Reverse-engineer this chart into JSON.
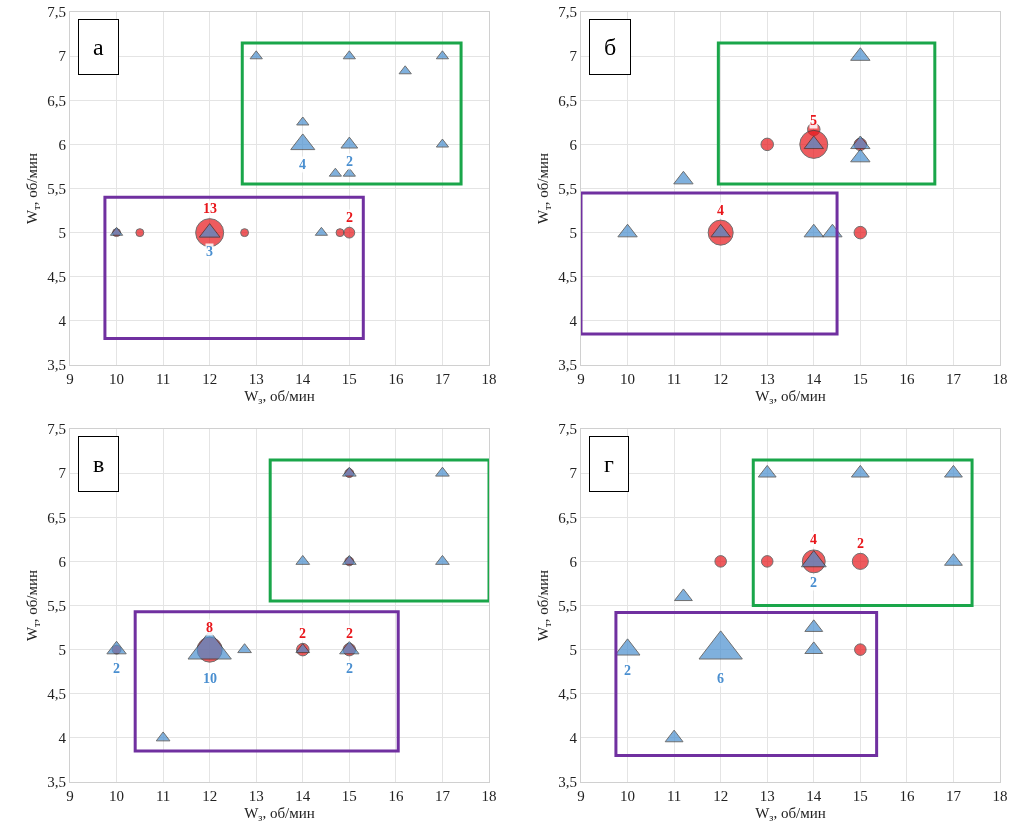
{
  "chart_data": [
    {
      "type": "bubble",
      "title": "а",
      "xlabel": "W$_{з}$, об/мин",
      "ylabel": "W$_{т}$, об/мин",
      "xlim": [
        9,
        18
      ],
      "xticks": [
        9,
        10,
        11,
        12,
        13,
        14,
        15,
        16,
        17,
        18
      ],
      "ylim": [
        3.5,
        7.5
      ],
      "yticks": [
        {
          "value": 3.5,
          "label": "3,5"
        },
        4,
        {
          "value": 4.5,
          "label": "4,5"
        },
        5,
        {
          "value": 5.5,
          "label": "5,5"
        },
        6,
        {
          "value": 6.5,
          "label": "6,5"
        },
        7,
        {
          "value": 7.5,
          "label": "7,5"
        }
      ],
      "grid": true,
      "annotations": [
        {
          "text": "13",
          "x": 12,
          "y": 5
        },
        {
          "text": "3",
          "x": 12,
          "y": 5
        },
        {
          "text": "2",
          "x": 15,
          "y": 5
        },
        {
          "text": "4",
          "x": 14,
          "y": 6
        },
        {
          "text": "2",
          "x": 15,
          "y": 6
        }
      ],
      "series": [
        {
          "color": "#e8161b",
          "marker": "circle",
          "x": [
            10,
            10.5,
            12,
            12.75,
            14.8,
            15
          ],
          "values": [
            5,
            5,
            5,
            5,
            5,
            5
          ],
          "sizes": [
            0.08,
            0.08,
            1,
            0.08,
            0.08,
            0.15
          ]
        },
        {
          "color": "#4a8fd0",
          "marker": "triangle",
          "x": [
            10,
            12,
            13,
            14,
            14,
            14.4,
            14.7,
            15,
            15,
            15,
            16.2,
            17,
            17
          ],
          "values": [
            5,
            5,
            7,
            6.25,
            6,
            5,
            5.67,
            5.67,
            7,
            6,
            6.83,
            7,
            6
          ],
          "sizes": [
            0.08,
            0.23,
            0.08,
            0.08,
            0.31,
            0.08,
            0.08,
            0.08,
            0.08,
            0.15,
            0.08,
            0.08,
            0.08
          ]
        }
      ]
    },
    {
      "type": "bubble",
      "title": "б",
      "xlabel": "W$_{з}$, об/мин",
      "ylabel": "W$_{т}$, об/мин",
      "xlim": [
        9,
        18
      ],
      "xticks": [
        9,
        10,
        11,
        12,
        13,
        14,
        15,
        16,
        17,
        18
      ],
      "ylim": [
        3.5,
        7.5
      ],
      "yticks": [
        {
          "value": 3.5,
          "label": "3,5"
        },
        4,
        {
          "value": 4.5,
          "label": "4,5"
        },
        5,
        {
          "value": 5.5,
          "label": "5,5"
        },
        6,
        {
          "value": 6.5,
          "label": "6,5"
        },
        7,
        {
          "value": 7.5,
          "label": "7,5"
        }
      ],
      "grid": true,
      "annotations": [
        {
          "text": "4",
          "x": 12,
          "y": 5
        },
        {
          "text": "5",
          "x": 14,
          "y": 6
        }
      ],
      "series": [
        {
          "color": "#e8161b",
          "marker": "circle",
          "x": [
            12,
            13,
            14,
            14,
            15,
            15
          ],
          "values": [
            5,
            6,
            6.17,
            6,
            6,
            5
          ],
          "sizes": [
            0.8,
            0.2,
            0.2,
            1,
            0.2,
            0.2
          ]
        },
        {
          "color": "#4a8fd0",
          "marker": "triangle",
          "x": [
            10,
            11.2,
            12,
            14,
            14.4,
            14,
            15,
            15,
            15
          ],
          "values": [
            5,
            5.6,
            5,
            5,
            5,
            6,
            7,
            6,
            5.85
          ],
          "sizes": [
            0.2,
            0.2,
            0.2,
            0.2,
            0.2,
            0.2,
            0.2,
            0.2,
            0.2
          ]
        }
      ]
    },
    {
      "type": "bubble",
      "title": "в",
      "xlabel": "W$_{з}$, об/мин",
      "ylabel": "W$_{т}$, об/мин",
      "xlim": [
        9,
        18
      ],
      "xticks": [
        9,
        10,
        11,
        12,
        13,
        14,
        15,
        16,
        17,
        18
      ],
      "ylim": [
        3.5,
        7.5
      ],
      "yticks": [
        {
          "value": 3.5,
          "label": "3,5"
        },
        4,
        {
          "value": 4.5,
          "label": "4,5"
        },
        5,
        {
          "value": 5.5,
          "label": "5,5"
        },
        6,
        {
          "value": 6.5,
          "label": "6,5"
        },
        7,
        {
          "value": 7.5,
          "label": "7,5"
        }
      ],
      "grid": true,
      "annotations": [
        {
          "text": "2",
          "x": 10,
          "y": 5
        },
        {
          "text": "10",
          "x": 12,
          "y": 5
        },
        {
          "text": "8",
          "x": 12,
          "y": 5
        },
        {
          "text": "2",
          "x": 14,
          "y": 5
        },
        {
          "text": "2",
          "x": 15,
          "y": 5
        },
        {
          "text": "2",
          "x": 15,
          "y": 5
        }
      ],
      "series": [
        {
          "color": "#e8161b",
          "marker": "circle",
          "x": [
            10,
            12,
            14,
            15,
            15,
            15
          ],
          "values": [
            5,
            5,
            5,
            5,
            7,
            6
          ],
          "sizes": [
            0.1,
            0.8,
            0.2,
            0.2,
            0.1,
            0.1
          ]
        },
        {
          "color": "#4a8fd0",
          "marker": "triangle",
          "x": [
            10,
            11,
            12,
            12.75,
            14,
            15,
            14,
            15,
            15,
            17,
            17
          ],
          "values": [
            5,
            4,
            5,
            5,
            5,
            5,
            6,
            6,
            7,
            7,
            6
          ],
          "sizes": [
            0.2,
            0.1,
            1,
            0.1,
            0.1,
            0.2,
            0.1,
            0.1,
            0.1,
            0.1,
            0.1
          ]
        }
      ]
    },
    {
      "type": "bubble",
      "title": "г",
      "xlabel": "W$_{з}$, об/мин",
      "ylabel": "W$_{т}$, об/мин",
      "xlim": [
        9,
        18
      ],
      "xticks": [
        9,
        10,
        11,
        12,
        13,
        14,
        15,
        16,
        17,
        18
      ],
      "ylim": [
        3.5,
        7.5
      ],
      "yticks": [
        {
          "value": 3.5,
          "label": "3,5"
        },
        4,
        {
          "value": 4.5,
          "label": "4,5"
        },
        5,
        {
          "value": 5.5,
          "label": "5,5"
        },
        6,
        {
          "value": 6.5,
          "label": "6,5"
        },
        7,
        {
          "value": 7.5,
          "label": "7,5"
        }
      ],
      "grid": true,
      "annotations": [
        {
          "text": "4",
          "x": 14,
          "y": 6
        },
        {
          "text": "2",
          "x": 14,
          "y": 6
        },
        {
          "text": "2",
          "x": 15,
          "y": 6
        },
        {
          "text": "2",
          "x": 10,
          "y": 5
        },
        {
          "text": "6",
          "x": 12,
          "y": 5
        }
      ],
      "series": [
        {
          "color": "#e8161b",
          "marker": "circle",
          "x": [
            12,
            13,
            14,
            15,
            15
          ],
          "values": [
            6,
            6,
            6,
            6,
            5
          ],
          "sizes": [
            0.17,
            0.17,
            0.67,
            0.33,
            0.17
          ]
        },
        {
          "color": "#4a8fd0",
          "marker": "triangle",
          "x": [
            10,
            11,
            11.2,
            12,
            13,
            14,
            14,
            14,
            15,
            17,
            17
          ],
          "values": [
            5,
            4,
            5.6,
            5,
            7,
            5.25,
            5,
            6,
            7,
            7,
            6
          ],
          "sizes": [
            0.33,
            0.17,
            0.17,
            1,
            0.17,
            0.17,
            0.17,
            0.33,
            0.17,
            0.17,
            0.17
          ]
        }
      ]
    }
  ]
}
